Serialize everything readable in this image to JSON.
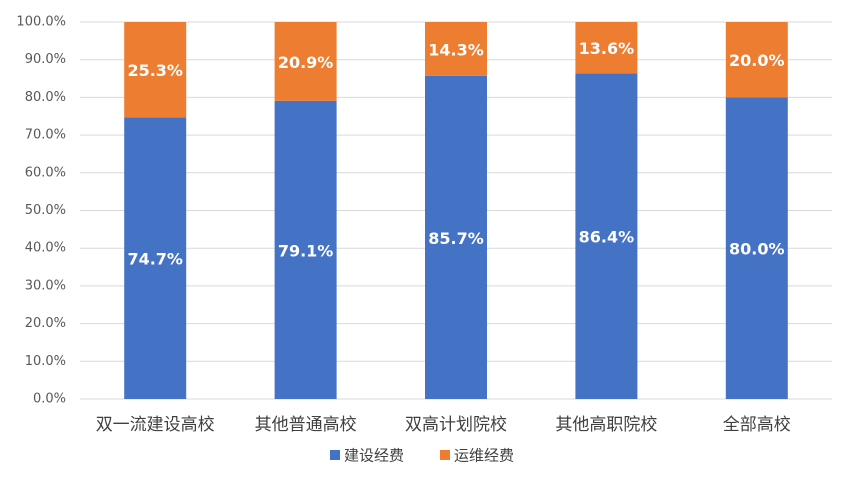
{
  "chart_data": {
    "type": "stacked_bar",
    "categories": [
      "双一流建设高校",
      "其他普通高校",
      "双高计划院校",
      "其他高职院校",
      "全部高校"
    ],
    "series": [
      {
        "name": "建设经费",
        "color": "#4472c4",
        "values": [
          74.7,
          79.1,
          85.7,
          86.4,
          80.0
        ],
        "value_labels": [
          "74.7%",
          "79.1%",
          "85.7%",
          "86.4%",
          "80.0%"
        ]
      },
      {
        "name": "运维经费",
        "color": "#ed7d31",
        "values": [
          25.3,
          20.9,
          14.3,
          13.6,
          20.0
        ],
        "value_labels": [
          "25.3%",
          "20.9%",
          "14.3%",
          "13.6%",
          "20.0%"
        ]
      }
    ],
    "ylim": [
      0,
      100
    ],
    "yticks": [
      {
        "value": 0,
        "label": "0.0%"
      },
      {
        "value": 10,
        "label": "10.0%"
      },
      {
        "value": 20,
        "label": "20.0%"
      },
      {
        "value": 30,
        "label": "30.0%"
      },
      {
        "value": 40,
        "label": "40.0%"
      },
      {
        "value": 50,
        "label": "50.0%"
      },
      {
        "value": 60,
        "label": "60.0%"
      },
      {
        "value": 70,
        "label": "70.0%"
      },
      {
        "value": 80,
        "label": "80.0%"
      },
      {
        "value": 90,
        "label": "90.0%"
      },
      {
        "value": 100,
        "label": "100.0%"
      }
    ],
    "grid": true,
    "legend": "bottom"
  }
}
